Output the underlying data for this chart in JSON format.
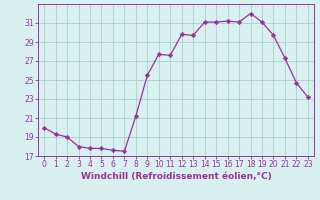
{
  "x": [
    0,
    1,
    2,
    3,
    4,
    5,
    6,
    7,
    8,
    9,
    10,
    11,
    12,
    13,
    14,
    15,
    16,
    17,
    18,
    19,
    20,
    21,
    22,
    23
  ],
  "y": [
    20.0,
    19.3,
    19.0,
    18.0,
    17.8,
    17.8,
    17.6,
    17.5,
    21.2,
    25.5,
    27.7,
    27.6,
    29.8,
    29.7,
    31.1,
    31.1,
    31.2,
    31.1,
    32.0,
    31.1,
    29.7,
    27.3,
    24.7,
    23.2
  ],
  "line_color": "#993399",
  "marker": "D",
  "marker_size": 2.2,
  "bg_color": "#d8f0f0",
  "grid_color": "#aad0d0",
  "xlabel": "Windchill (Refroidissement éolien,°C)",
  "xlabel_fontsize": 6.5,
  "tick_fontsize": 5.5,
  "ylim": [
    17,
    33
  ],
  "yticks": [
    17,
    19,
    21,
    23,
    25,
    27,
    29,
    31
  ],
  "xlim": [
    -0.5,
    23.5
  ],
  "linewidth": 0.9
}
